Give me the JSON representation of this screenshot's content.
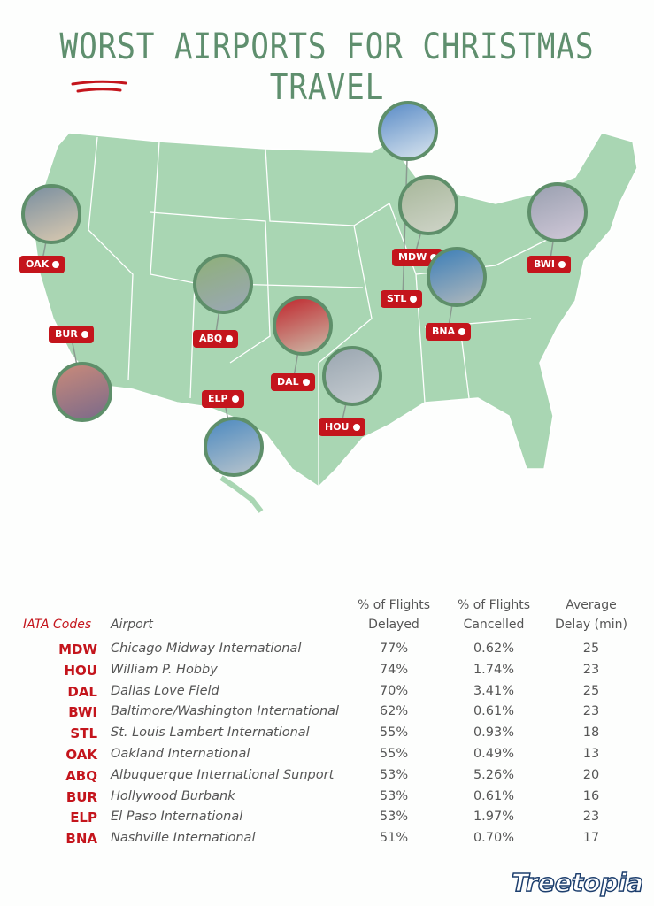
{
  "title": "WORST AIRPORTS FOR CHRISTMAS TRAVEL",
  "map": {
    "pins": [
      "OAK",
      "BUR",
      "ABQ",
      "ELP",
      "DAL",
      "HOU",
      "STL",
      "MDW",
      "BNA",
      "BWI"
    ]
  },
  "table": {
    "headers": [
      [
        "IATA Codes"
      ],
      [
        "Airport"
      ],
      [
        "% of Flights",
        "Delayed"
      ],
      [
        "% of Flights",
        "Cancelled"
      ],
      [
        "Average",
        "Delay (min)"
      ]
    ],
    "rows": [
      [
        "MDW",
        "Chicago Midway International",
        "77%",
        "0.62%",
        "25"
      ],
      [
        "HOU",
        "William P. Hobby",
        "74%",
        "1.74%",
        "23"
      ],
      [
        "DAL",
        "Dallas Love Field",
        "70%",
        "3.41%",
        "25"
      ],
      [
        "BWI",
        "Baltimore/Washington International",
        "62%",
        "0.61%",
        "23"
      ],
      [
        "STL",
        "St. Louis Lambert International",
        "55%",
        "0.93%",
        "18"
      ],
      [
        "OAK",
        "Oakland International",
        "55%",
        "0.49%",
        "13"
      ],
      [
        "ABQ",
        "Albuquerque International Sunport",
        "53%",
        "5.26%",
        "20"
      ],
      [
        "BUR",
        "Hollywood Burbank",
        "53%",
        "0.61%",
        "16"
      ],
      [
        "ELP",
        "El Paso International",
        "53%",
        "1.97%",
        "23"
      ],
      [
        "BNA",
        "Nashville International",
        "51%",
        "0.70%",
        "17"
      ]
    ]
  },
  "brand": "Treetopia"
}
